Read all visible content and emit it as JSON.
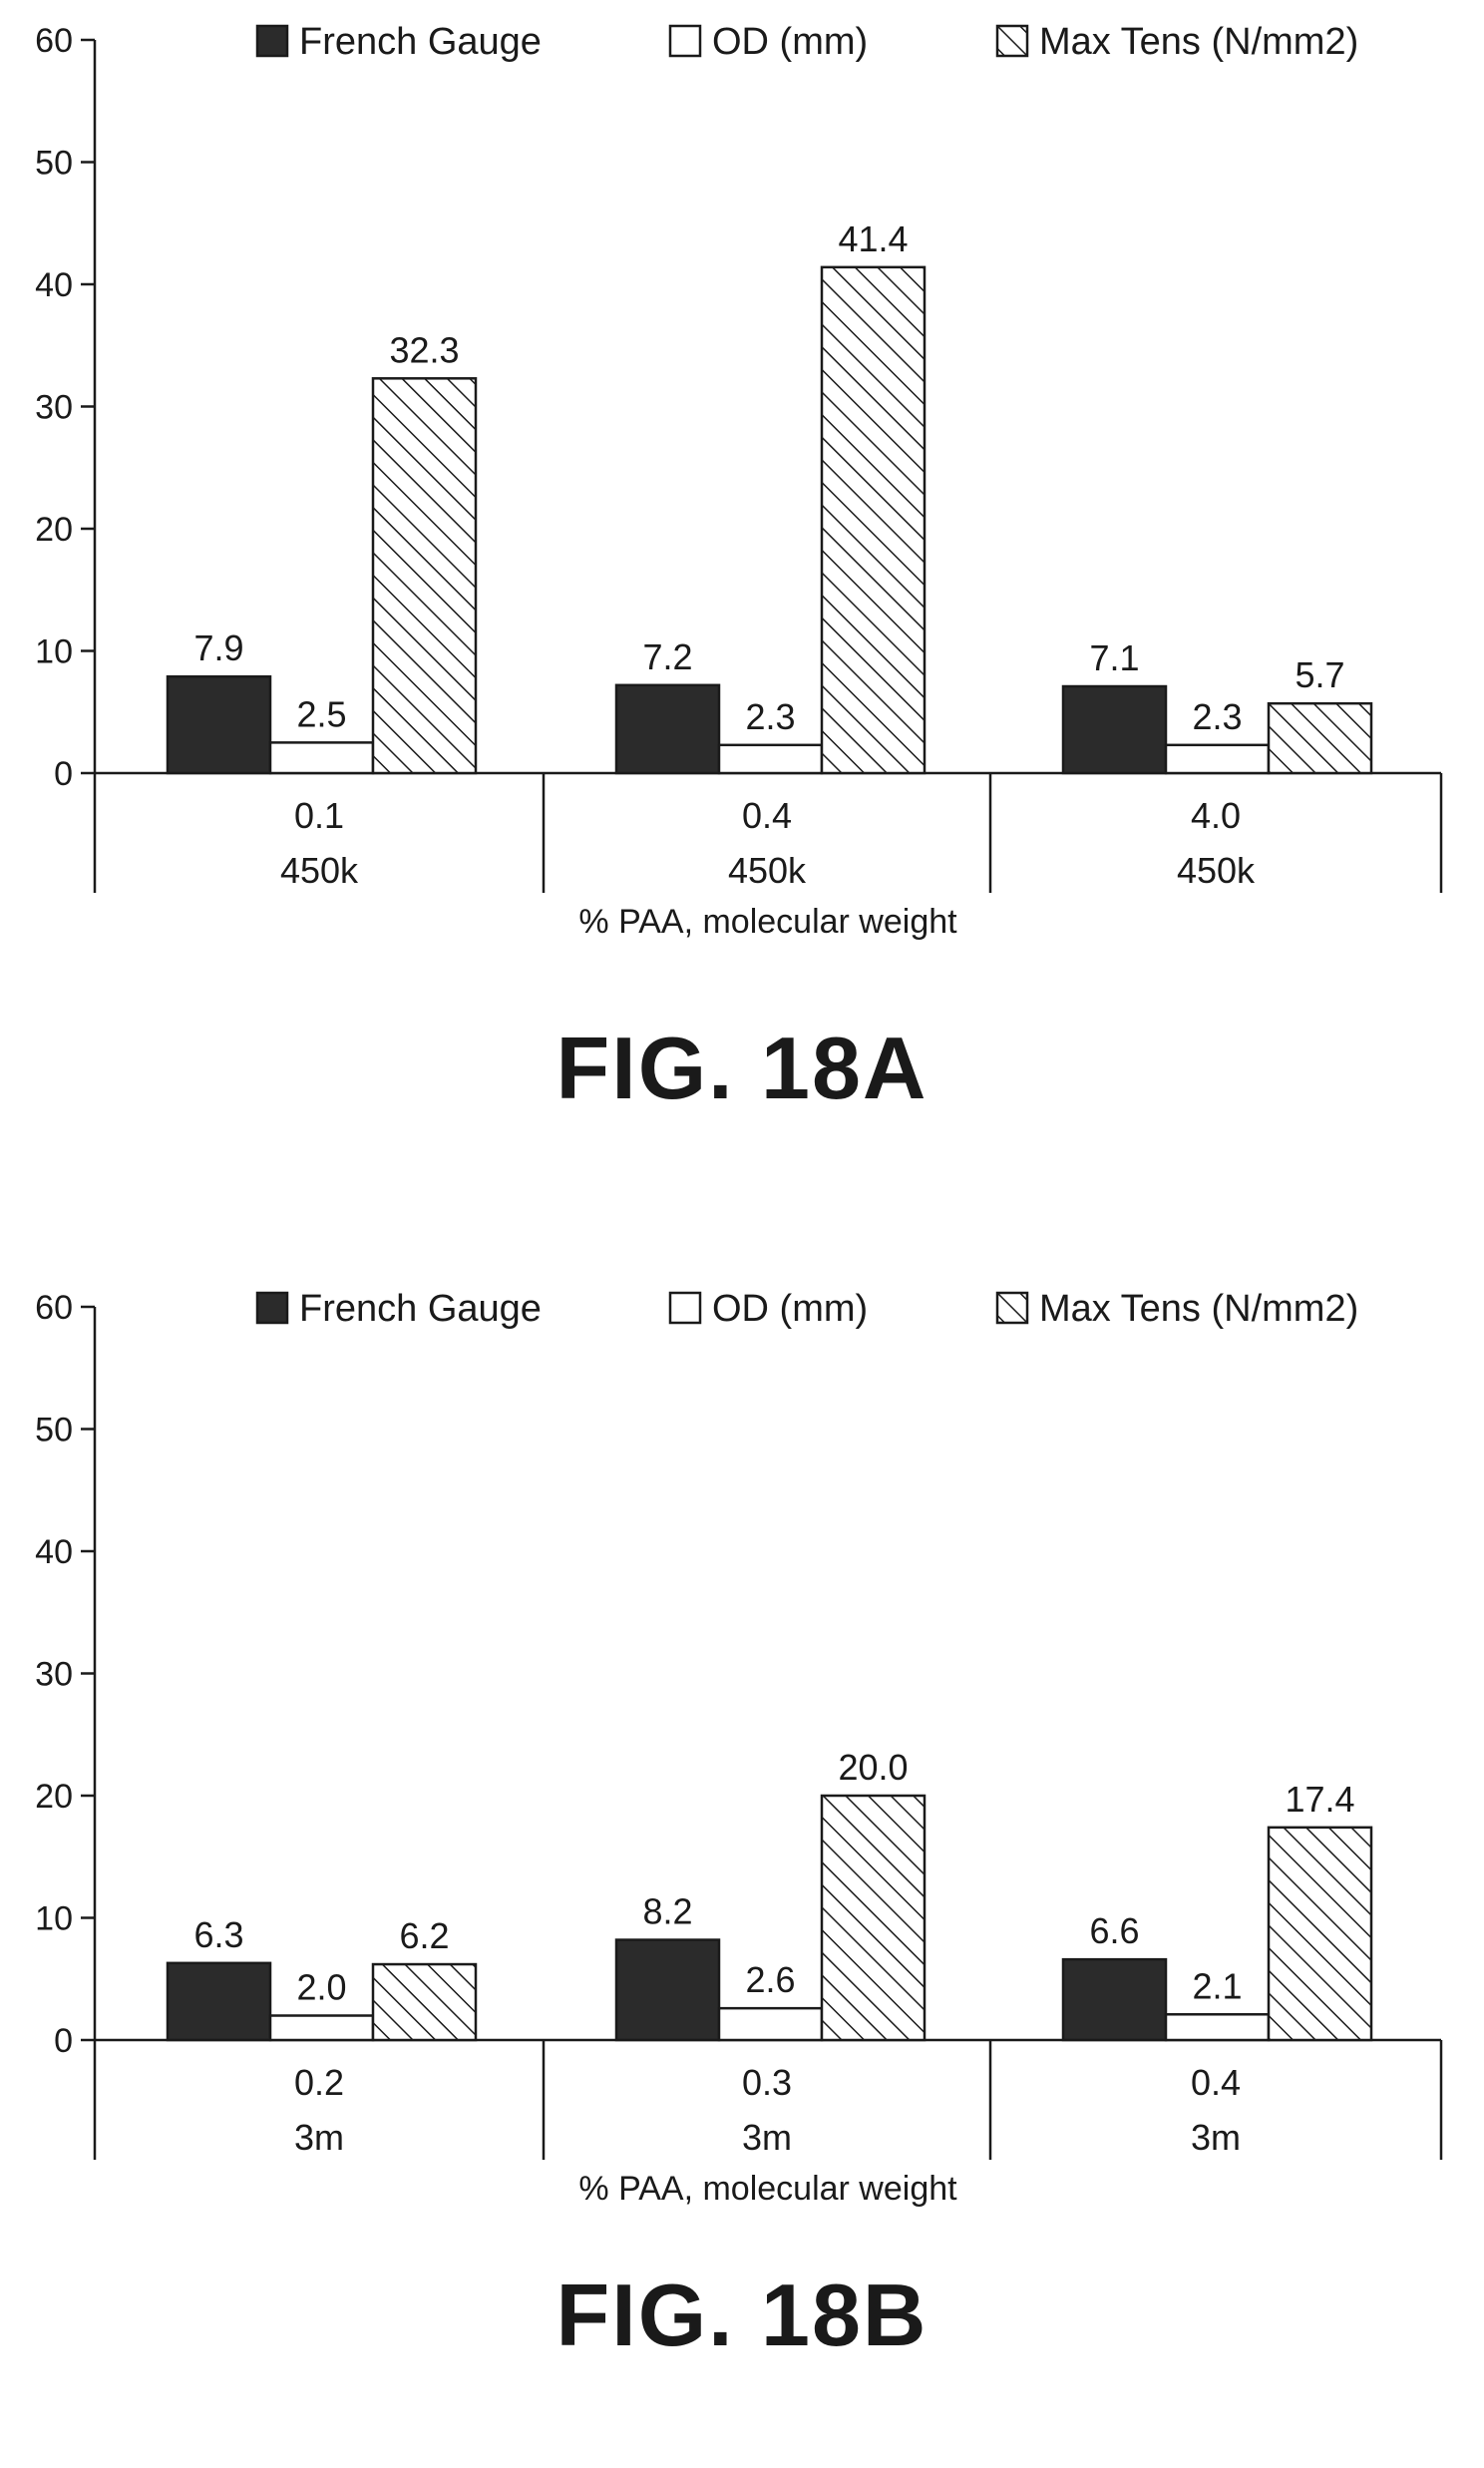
{
  "chart_data": [
    {
      "type": "bar",
      "figure_label": "FIG. 18A",
      "xlabel": "% PAA, molecular weight",
      "ylabel": "",
      "ylim": [
        0,
        60
      ],
      "yticks": [
        "0",
        "10",
        "20",
        "30",
        "40",
        "50",
        "60"
      ],
      "categories": [
        {
          "line1": "0.1",
          "line2": "450k"
        },
        {
          "line1": "0.4",
          "line2": "450k"
        },
        {
          "line1": "4.0",
          "line2": "450k"
        }
      ],
      "series": [
        {
          "name": "French Gauge",
          "fill": "solid-dark",
          "values": [
            7.9,
            7.2,
            7.1
          ],
          "labels": [
            "7.9",
            "7.2",
            "7.1"
          ]
        },
        {
          "name": "OD (mm)",
          "fill": "white",
          "values": [
            2.5,
            2.3,
            2.3
          ],
          "labels": [
            "2.5",
            "2.3",
            "2.3"
          ]
        },
        {
          "name": "Max Tens (N/mm2)",
          "fill": "hatched",
          "values": [
            32.3,
            41.4,
            5.7
          ],
          "labels": [
            "32.3",
            "41.4",
            "5.7"
          ]
        }
      ],
      "legend_position": "top",
      "grid": false
    },
    {
      "type": "bar",
      "figure_label": "FIG. 18B",
      "xlabel": "% PAA, molecular weight",
      "ylabel": "",
      "ylim": [
        0,
        60
      ],
      "yticks": [
        "0",
        "10",
        "20",
        "30",
        "40",
        "50",
        "60"
      ],
      "categories": [
        {
          "line1": "0.2",
          "line2": "3m"
        },
        {
          "line1": "0.3",
          "line2": "3m"
        },
        {
          "line1": "0.4",
          "line2": "3m"
        }
      ],
      "series": [
        {
          "name": "French Gauge",
          "fill": "solid-dark",
          "values": [
            6.3,
            8.2,
            6.6
          ],
          "labels": [
            "6.3",
            "8.2",
            "6.6"
          ]
        },
        {
          "name": "OD (mm)",
          "fill": "white",
          "values": [
            2.0,
            2.6,
            2.1
          ],
          "labels": [
            "2.0",
            "2.6",
            "2.1"
          ]
        },
        {
          "name": "Max Tens (N/mm2)",
          "fill": "hatched",
          "values": [
            6.2,
            20.0,
            17.4
          ],
          "labels": [
            "6.2",
            "20.0",
            "17.4"
          ]
        }
      ],
      "legend_position": "top",
      "grid": false
    }
  ],
  "colors": {
    "dark_bar": "#2b2b2b",
    "ink": "#1a1a1a",
    "background": "#ffffff"
  }
}
